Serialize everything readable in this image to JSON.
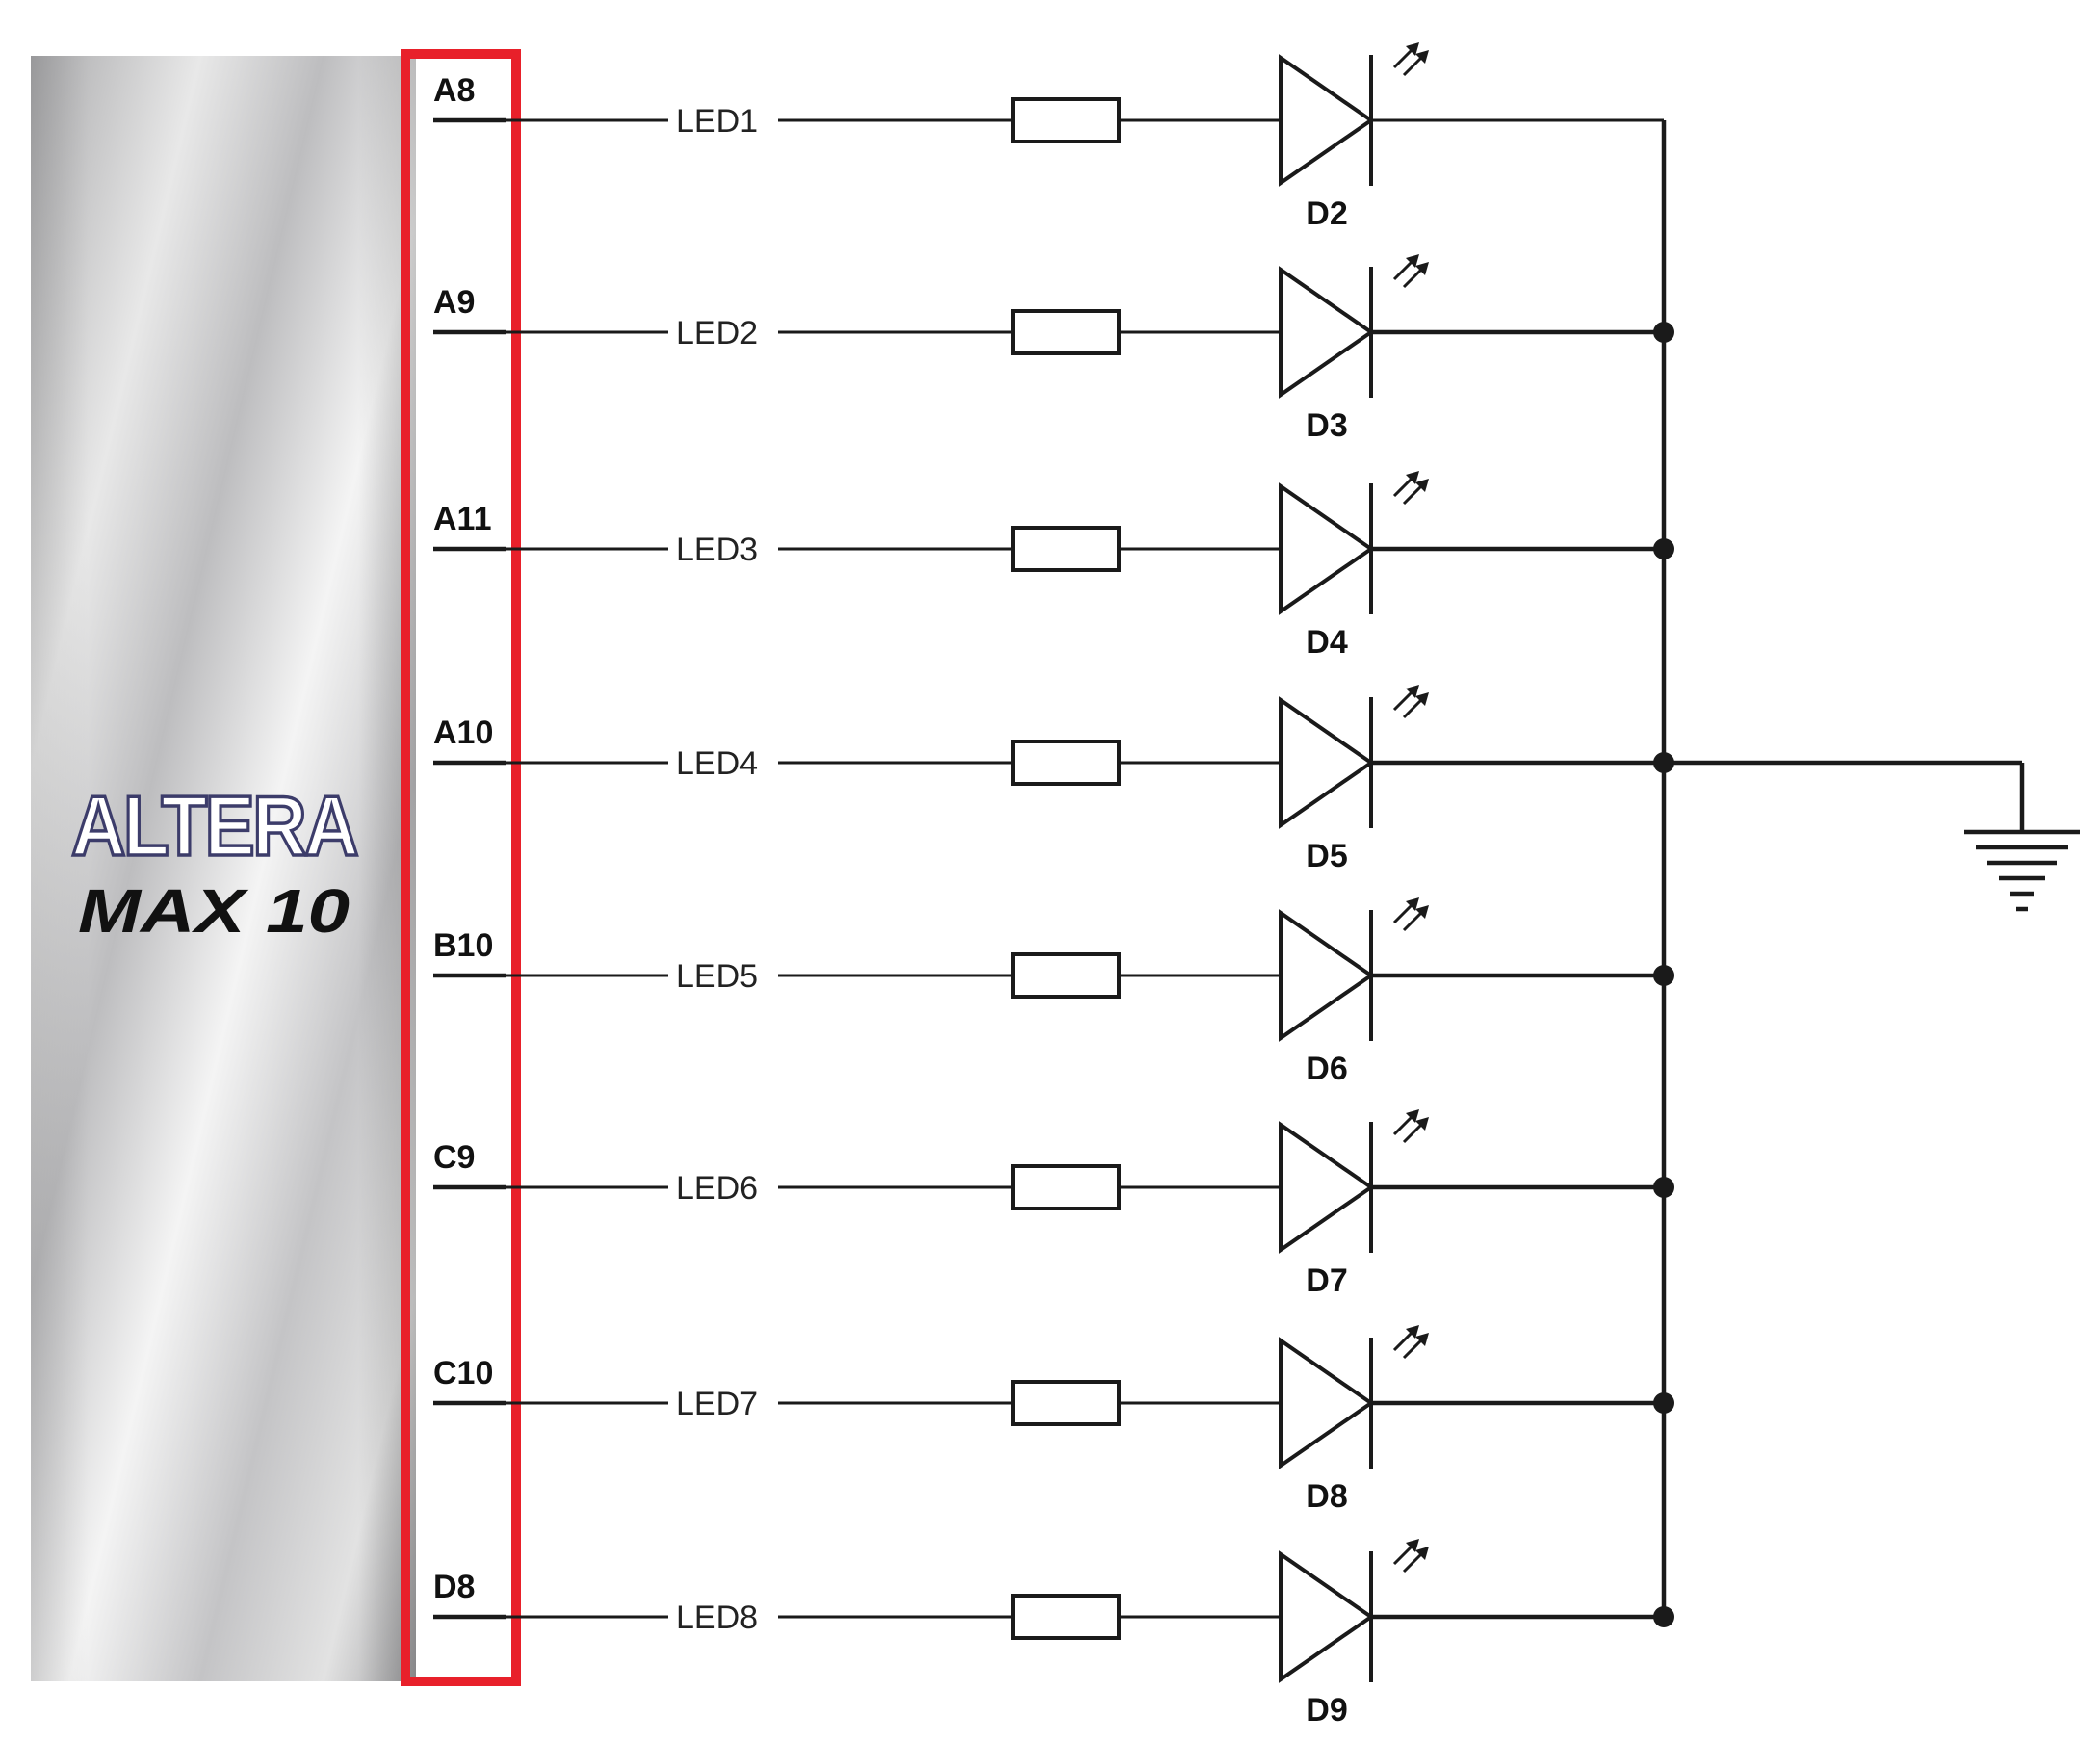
{
  "chip": {
    "brand": "ALTERA",
    "product": "MAX 10"
  },
  "channels": [
    {
      "pin": "A8",
      "net": "LED1",
      "diode": "D2"
    },
    {
      "pin": "A9",
      "net": "LED2",
      "diode": "D3"
    },
    {
      "pin": "A11",
      "net": "LED3",
      "diode": "D4"
    },
    {
      "pin": "A10",
      "net": "LED4",
      "diode": "D5"
    },
    {
      "pin": "B10",
      "net": "LED5",
      "diode": "D6"
    },
    {
      "pin": "C9",
      "net": "LED6",
      "diode": "D7"
    },
    {
      "pin": "C10",
      "net": "LED7",
      "diode": "D8"
    },
    {
      "pin": "D8",
      "net": "LED8",
      "diode": "D9"
    }
  ],
  "highlight_color": "#e8202a",
  "ground_symbol": "ground-icon"
}
